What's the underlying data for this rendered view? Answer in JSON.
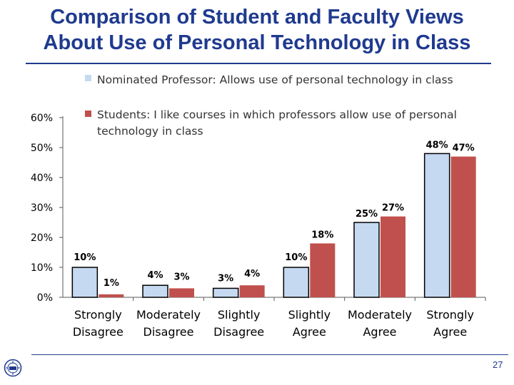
{
  "slide": {
    "title_line1": "Comparison of Student and Faculty Views",
    "title_line2": "About Use of Personal Technology in Class",
    "page_number": "27"
  },
  "colors": {
    "title": "#1f3a8f",
    "professor_series": "#c5d9f1",
    "student_series": "#c0504d"
  },
  "chart_data": {
    "type": "bar",
    "categories": [
      [
        "Strongly",
        "Disagree"
      ],
      [
        "Moderately",
        "Disagree"
      ],
      [
        "Slightly",
        "Disagree"
      ],
      [
        "Slightly",
        "Agree"
      ],
      [
        "Moderately",
        "Agree"
      ],
      [
        "Strongly",
        "Agree"
      ]
    ],
    "series": [
      {
        "name": "Nominated Professor: Allows use of personal technology in class",
        "values": [
          10,
          4,
          3,
          10,
          25,
          48
        ],
        "labels": [
          "10%",
          "4%",
          "3%",
          "10%",
          "25%",
          "48%"
        ]
      },
      {
        "name": [
          "Students: I like courses in which professors allow use of personal",
          "technology in class"
        ],
        "values": [
          1,
          3,
          4,
          18,
          27,
          47
        ],
        "labels": [
          "1%",
          "3%",
          "4%",
          "18%",
          "27%",
          "47%"
        ]
      }
    ],
    "ylim": [
      0,
      60
    ],
    "yticks": [
      0,
      10,
      20,
      30,
      40,
      50,
      60
    ],
    "ytick_labels": [
      "0%",
      "10%",
      "20%",
      "30%",
      "40%",
      "50%",
      "60%"
    ],
    "legend": "top"
  }
}
